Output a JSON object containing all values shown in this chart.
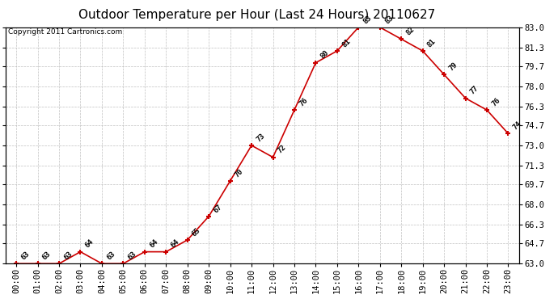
{
  "title": "Outdoor Temperature per Hour (Last 24 Hours) 20110627",
  "copyright": "Copyright 2011 Cartronics.com",
  "hours": [
    "00:00",
    "01:00",
    "02:00",
    "03:00",
    "04:00",
    "05:00",
    "06:00",
    "07:00",
    "08:00",
    "09:00",
    "10:00",
    "11:00",
    "12:00",
    "13:00",
    "14:00",
    "15:00",
    "16:00",
    "17:00",
    "18:00",
    "19:00",
    "20:00",
    "21:00",
    "22:00",
    "23:00"
  ],
  "temps": [
    63,
    63,
    63,
    64,
    63,
    63,
    64,
    64,
    65,
    67,
    70,
    73,
    72,
    76,
    80,
    81,
    83,
    83,
    82,
    81,
    79,
    77,
    76,
    74
  ],
  "ylim": [
    63.0,
    83.0
  ],
  "yticks_right": [
    63.0,
    64.7,
    66.3,
    68.0,
    69.7,
    71.3,
    73.0,
    74.7,
    76.3,
    78.0,
    79.7,
    81.3,
    83.0
  ],
  "line_color": "#cc0000",
  "marker_color": "#cc0000",
  "bg_color": "#ffffff",
  "grid_color": "#c0c0c0",
  "title_fontsize": 11,
  "copyright_fontsize": 6.5,
  "label_fontsize": 6.5,
  "tick_fontsize": 7.5
}
